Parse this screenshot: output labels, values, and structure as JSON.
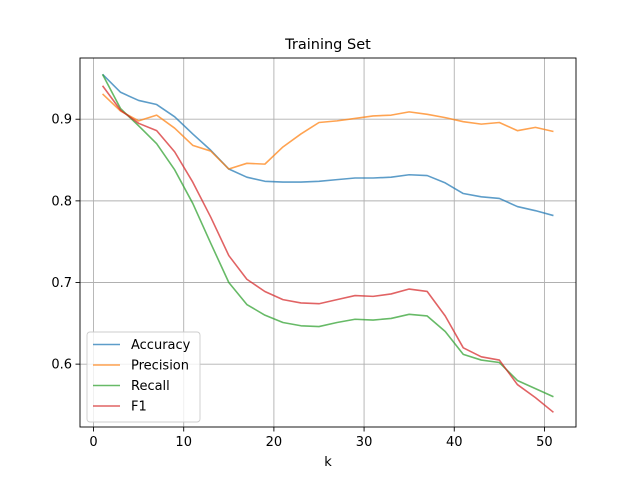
{
  "chart_data": {
    "type": "line",
    "title": "Training Set",
    "xlabel": "k",
    "ylabel": "",
    "xlim": [
      -1.5,
      53.5
    ],
    "ylim": [
      0.523,
      0.975
    ],
    "xticks": [
      0,
      10,
      20,
      30,
      40,
      50
    ],
    "yticks": [
      0.6,
      0.7,
      0.8,
      0.9
    ],
    "grid": true,
    "legend_position": "lower left",
    "x": [
      1,
      3,
      5,
      7,
      9,
      11,
      13,
      15,
      17,
      19,
      21,
      23,
      25,
      27,
      29,
      31,
      33,
      35,
      37,
      39,
      41,
      43,
      45,
      47,
      49,
      51
    ],
    "series": [
      {
        "name": "Accuracy",
        "color": "#1f77b4",
        "values": [
          0.955,
          0.933,
          0.923,
          0.918,
          0.903,
          0.882,
          0.862,
          0.839,
          0.829,
          0.824,
          0.823,
          0.823,
          0.824,
          0.826,
          0.828,
          0.828,
          0.829,
          0.832,
          0.831,
          0.822,
          0.809,
          0.805,
          0.803,
          0.793,
          0.788,
          0.782
        ]
      },
      {
        "name": "Precision",
        "color": "#ff7f0e",
        "values": [
          0.931,
          0.91,
          0.898,
          0.905,
          0.889,
          0.868,
          0.861,
          0.839,
          0.846,
          0.845,
          0.866,
          0.882,
          0.896,
          0.898,
          0.901,
          0.904,
          0.905,
          0.909,
          0.906,
          0.902,
          0.897,
          0.894,
          0.896,
          0.886,
          0.89,
          0.885
        ]
      },
      {
        "name": "Recall",
        "color": "#2ca02c",
        "values": [
          0.955,
          0.913,
          0.892,
          0.87,
          0.838,
          0.797,
          0.748,
          0.7,
          0.673,
          0.66,
          0.651,
          0.647,
          0.646,
          0.651,
          0.655,
          0.654,
          0.656,
          0.661,
          0.659,
          0.64,
          0.612,
          0.605,
          0.602,
          0.58,
          0.57,
          0.56
        ]
      },
      {
        "name": "F1",
        "color": "#d62728",
        "values": [
          0.941,
          0.911,
          0.895,
          0.886,
          0.86,
          0.823,
          0.78,
          0.733,
          0.704,
          0.689,
          0.679,
          0.675,
          0.674,
          0.679,
          0.684,
          0.683,
          0.686,
          0.692,
          0.689,
          0.659,
          0.62,
          0.609,
          0.605,
          0.575,
          0.559,
          0.541
        ]
      }
    ]
  }
}
